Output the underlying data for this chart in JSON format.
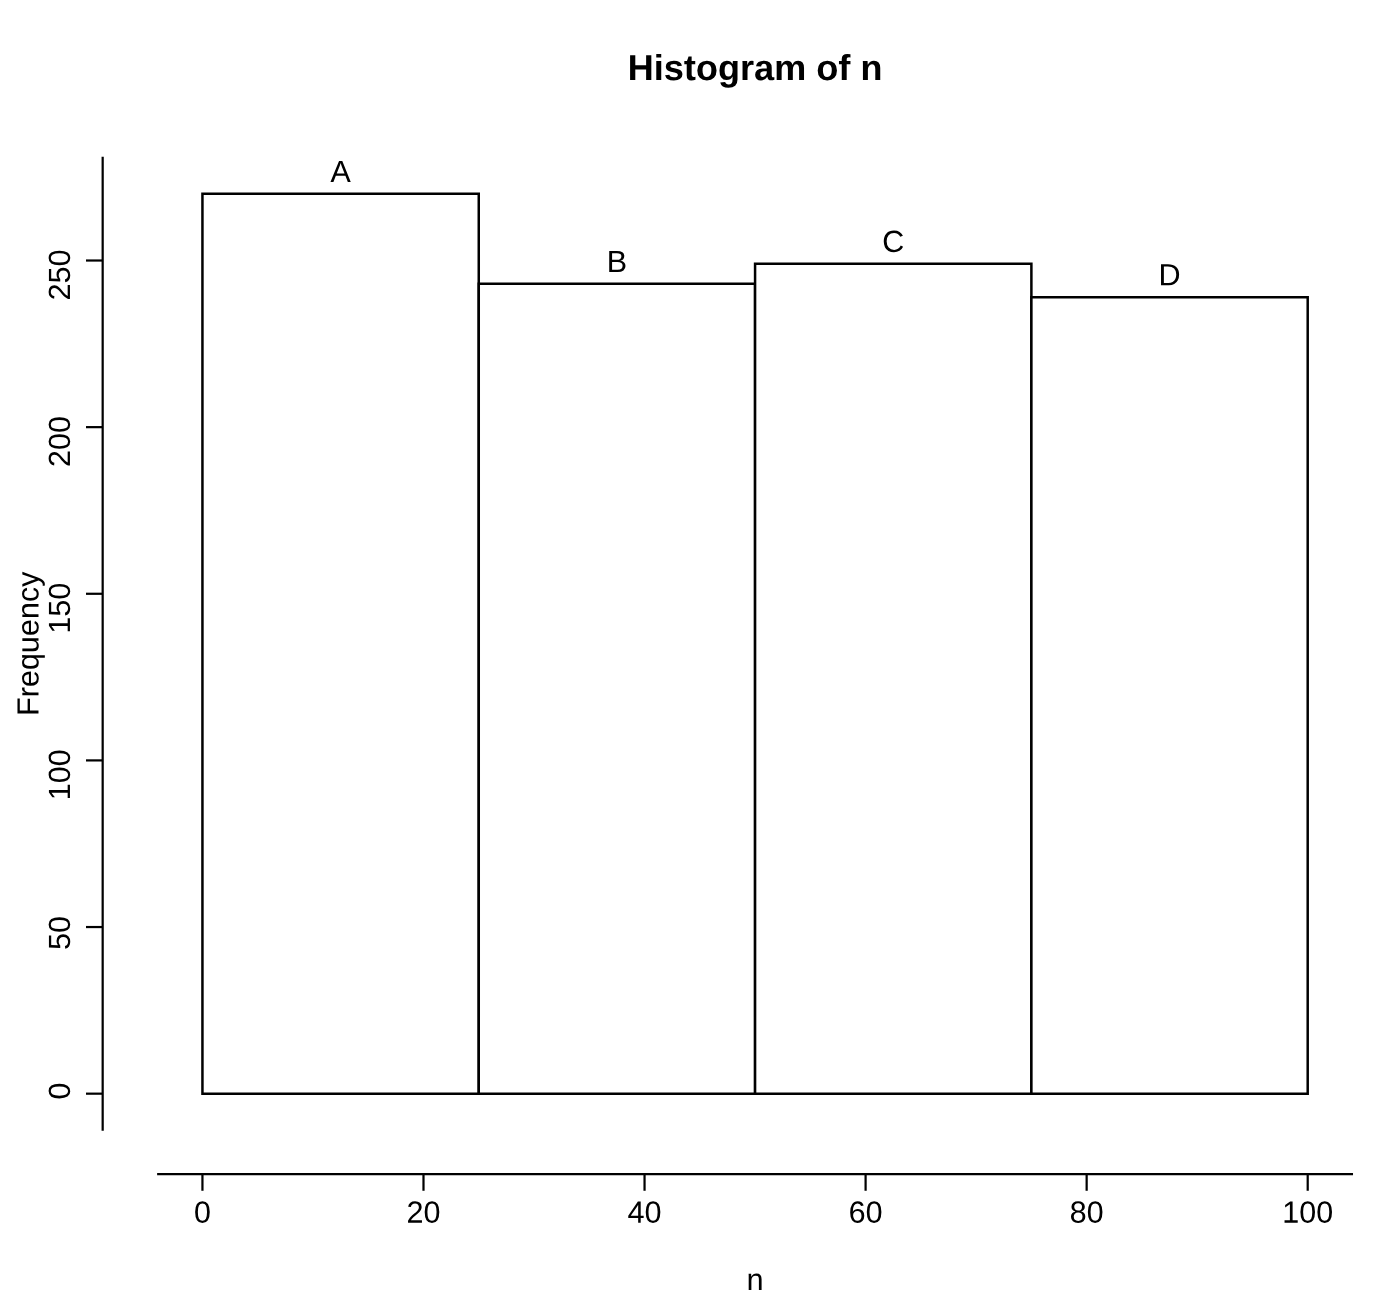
{
  "chart_data": {
    "type": "histogram",
    "title": "Histogram of n",
    "xlabel": "n",
    "ylabel": "Frequency",
    "bins": [
      0,
      25,
      50,
      75,
      100
    ],
    "values": [
      270,
      243,
      249,
      239
    ],
    "color": "#ffffff",
    "annotations": [
      {
        "text": "A",
        "x": 12.5,
        "y": 270
      },
      {
        "text": "B",
        "x": 37.5,
        "y": 243
      },
      {
        "text": "C",
        "x": 62.5,
        "y": 249
      },
      {
        "text": "D",
        "x": 87.5,
        "y": 239
      }
    ],
    "xlim": [
      -4,
      104
    ],
    "ylim": [
      -10.8,
      280.8
    ],
    "xticks": [
      0,
      20,
      40,
      60,
      80,
      100
    ],
    "yticks": [
      0,
      50,
      100,
      150,
      200,
      250
    ],
    "grid": false,
    "legend": false
  }
}
